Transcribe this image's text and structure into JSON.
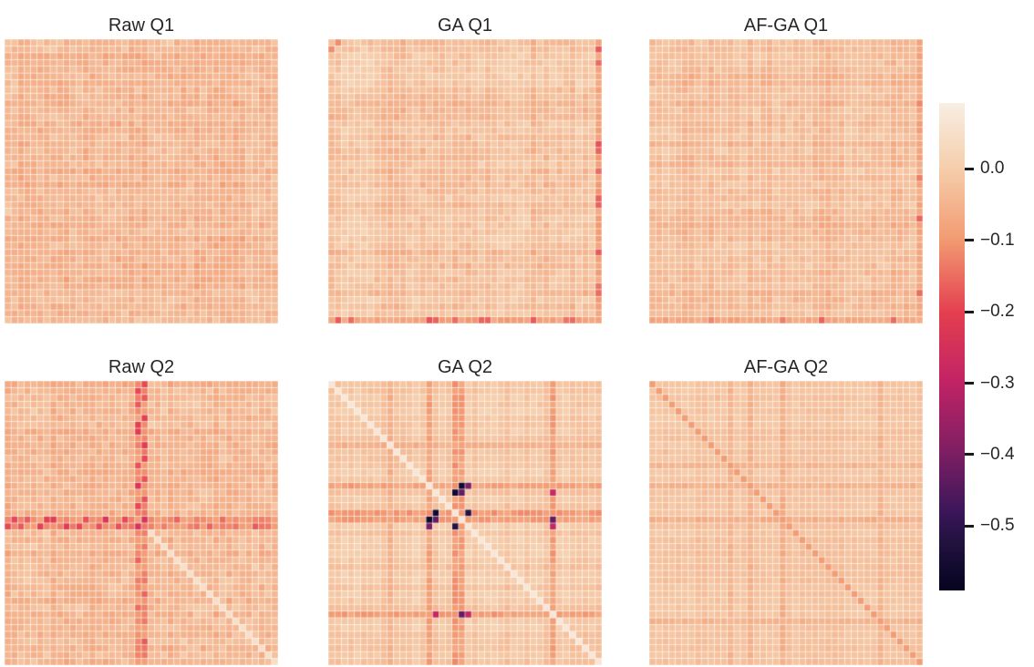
{
  "figure": {
    "background": "#ffffff",
    "text_color": "#262626",
    "tick_color": "#1a1a1a"
  },
  "chart_data": {
    "type": "heatmap",
    "layout": "2 rows x 3 columns of square correlation-matrix heatmaps with one shared vertical colorbar on the right",
    "matrix_size": 42,
    "scale": {
      "vmin": -0.59,
      "vmax": 0.092,
      "ticks": [
        {
          "value": 0.0,
          "label": "0.0"
        },
        {
          "value": -0.1,
          "label": "−0.1"
        },
        {
          "value": -0.2,
          "label": "−0.2"
        },
        {
          "value": -0.3,
          "label": "−0.3"
        },
        {
          "value": -0.4,
          "label": "−0.4"
        },
        {
          "value": -0.5,
          "label": "−0.5"
        }
      ]
    },
    "colormap": {
      "name": "rocket",
      "stops": [
        {
          "t": 0.0,
          "color": "#060420"
        },
        {
          "t": 0.1,
          "color": "#221240"
        },
        {
          "t": 0.16,
          "color": "#3B1659"
        },
        {
          "t": 0.28,
          "color": "#7D1E63"
        },
        {
          "t": 0.43,
          "color": "#C22365"
        },
        {
          "t": 0.57,
          "color": "#E43F4F"
        },
        {
          "t": 0.72,
          "color": "#F29B72"
        },
        {
          "t": 0.87,
          "color": "#F6CFAD"
        },
        {
          "t": 1.0,
          "color": "#F8EEE3"
        }
      ]
    },
    "panels": [
      {
        "title": "Raw Q1",
        "matrix": {
          "size": 42,
          "seed": 7,
          "base": 0.008,
          "amp": 0.082,
          "plaid": 0.55,
          "noise": 0.03,
          "diagonal": "none",
          "diagonal_value": 0,
          "diagonal_start": 0,
          "bands": [],
          "cells": []
        }
      },
      {
        "title": "GA Q1",
        "matrix": {
          "size": 42,
          "seed": 13,
          "base": -0.018,
          "amp": 0.105,
          "plaid": 0.72,
          "noise": 0.022,
          "diagonal": "none",
          "diagonal_value": 0,
          "diagonal_start": 0,
          "bands": [
            {
              "index": 41,
              "strength": 0.085
            }
          ],
          "cells": [
            {
              "row": 1,
              "col": 41,
              "value": -0.17
            },
            {
              "row": 15,
              "col": 41,
              "value": -0.18
            },
            {
              "row": 24,
              "col": 41,
              "value": -0.16
            },
            {
              "row": 36,
              "col": 41,
              "value": -0.14
            },
            {
              "row": 41,
              "col": 3,
              "value": -0.15
            },
            {
              "row": 41,
              "col": 16,
              "value": -0.16
            },
            {
              "row": 41,
              "col": 19,
              "value": -0.15
            },
            {
              "row": 41,
              "col": 23,
              "value": -0.16
            },
            {
              "row": 41,
              "col": 31,
              "value": -0.17
            },
            {
              "row": 41,
              "col": 37,
              "value": -0.15
            },
            {
              "row": 0,
              "col": 1,
              "value": -0.115
            }
          ]
        }
      },
      {
        "title": "AF-GA Q1",
        "matrix": {
          "size": 42,
          "seed": 21,
          "base": -0.015,
          "amp": 0.098,
          "plaid": 0.7,
          "noise": 0.02,
          "diagonal": "none",
          "diagonal_value": 0,
          "diagonal_start": 0,
          "bands": [
            {
              "index": 41,
              "strength": 0.075
            }
          ],
          "cells": [
            {
              "row": 37,
              "col": 41,
              "value": -0.16
            },
            {
              "row": 41,
              "col": 26,
              "value": -0.16
            },
            {
              "row": 41,
              "col": 37,
              "value": -0.15
            },
            {
              "row": 20,
              "col": 41,
              "value": -0.13
            },
            {
              "row": 9,
              "col": 41,
              "value": -0.12
            }
          ]
        }
      },
      {
        "title": "Raw Q2",
        "matrix": {
          "size": 42,
          "seed": 4,
          "base": 0.002,
          "amp": 0.085,
          "plaid": 0.58,
          "noise": 0.032,
          "diagonal": "light",
          "diagonal_value": 0.05,
          "diagonal_start": 22,
          "bands": [
            {
              "index": 20,
              "strength": 0.105
            },
            {
              "index": 21,
              "strength": 0.115
            }
          ],
          "cells": [
            {
              "row": 1,
              "col": 20,
              "value": -0.19
            },
            {
              "row": 3,
              "col": 20,
              "value": -0.17
            },
            {
              "row": 6,
              "col": 20,
              "value": -0.2
            },
            {
              "row": 7,
              "col": 20,
              "value": -0.21
            },
            {
              "row": 12,
              "col": 20,
              "value": -0.18
            },
            {
              "row": 15,
              "col": 20,
              "value": -0.23
            },
            {
              "row": 18,
              "col": 20,
              "value": -0.19
            },
            {
              "row": 21,
              "col": 20,
              "value": -0.24
            },
            {
              "row": 21,
              "col": 0,
              "value": -0.19
            },
            {
              "row": 21,
              "col": 2,
              "value": -0.17
            },
            {
              "row": 21,
              "col": 5,
              "value": -0.2
            },
            {
              "row": 21,
              "col": 9,
              "value": -0.21
            },
            {
              "row": 21,
              "col": 11,
              "value": -0.19
            },
            {
              "row": 21,
              "col": 14,
              "value": -0.18
            },
            {
              "row": 21,
              "col": 17,
              "value": -0.18
            },
            {
              "row": 21,
              "col": 31,
              "value": -0.16
            },
            {
              "row": 21,
              "col": 38,
              "value": -0.17
            },
            {
              "row": 26,
              "col": 20,
              "value": -0.16
            },
            {
              "row": 33,
              "col": 20,
              "value": -0.15
            }
          ]
        }
      },
      {
        "title": "GA Q2",
        "matrix": {
          "size": 42,
          "seed": 5,
          "base": -0.022,
          "amp": 0.068,
          "plaid": 0.8,
          "noise": 0.012,
          "diagonal": "light",
          "diagonal_value": 0.07,
          "diagonal_start": 0,
          "bands": [
            {
              "index": 15,
              "strength": 0.085
            },
            {
              "index": 19,
              "strength": 0.095
            },
            {
              "index": 20,
              "strength": 0.09
            },
            {
              "index": 34,
              "strength": 0.09
            },
            {
              "index": 9,
              "strength": 0.055
            }
          ],
          "cells": [
            {
              "row": 16,
              "col": 19,
              "value": -0.56
            },
            {
              "row": 16,
              "col": 20,
              "value": -0.43
            },
            {
              "row": 20,
              "col": 15,
              "value": -0.56
            },
            {
              "row": 21,
              "col": 15,
              "value": -0.4
            },
            {
              "row": 21,
              "col": 19,
              "value": -0.52
            },
            {
              "row": 16,
              "col": 34,
              "value": -0.28
            },
            {
              "row": 20,
              "col": 34,
              "value": -0.43
            },
            {
              "row": 21,
              "col": 34,
              "value": -0.28
            }
          ]
        }
      },
      {
        "title": "AF-GA Q2",
        "matrix": {
          "size": 42,
          "seed": 6,
          "base": -0.002,
          "amp": 0.042,
          "plaid": 0.7,
          "noise": 0.01,
          "diagonal": "dark",
          "diagonal_value": -0.095,
          "diagonal_start": 0,
          "bands": [
            {
              "index": 15,
              "strength": 0.052
            },
            {
              "index": 20,
              "strength": 0.058
            },
            {
              "index": 12,
              "strength": 0.046
            },
            {
              "index": 35,
              "strength": 0.05
            }
          ],
          "cells": []
        }
      }
    ]
  }
}
